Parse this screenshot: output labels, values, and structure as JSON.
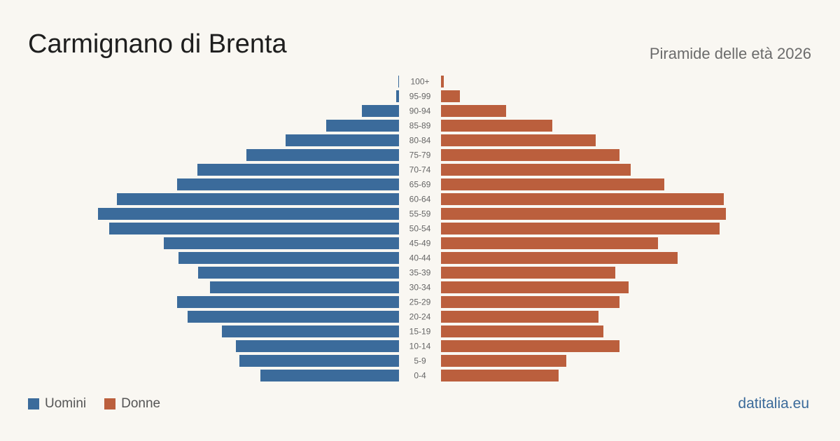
{
  "title": "Carmignano di Brenta",
  "subtitle": "Piramide delle età 2026",
  "brand": "datitalia.eu",
  "colors": {
    "male": "#3b6b9b",
    "female": "#bb5f3d",
    "tick": "#666666"
  },
  "chart_data": {
    "type": "bar",
    "orientation": "horizontal-pyramid",
    "categories": [
      "100+",
      "95-99",
      "90-94",
      "85-89",
      "80-84",
      "75-79",
      "70-74",
      "65-69",
      "60-64",
      "55-59",
      "50-54",
      "45-49",
      "40-44",
      "35-39",
      "30-34",
      "25-29",
      "20-24",
      "15-19",
      "10-14",
      "5-9",
      "0-4"
    ],
    "series": [
      {
        "name": "Uomini",
        "values": [
          1,
          4,
          53,
          104,
          162,
          218,
          288,
          317,
          403,
          430,
          414,
          336,
          315,
          287,
          270,
          317,
          302,
          253,
          233,
          228,
          198
        ]
      },
      {
        "name": "Donne",
        "values": [
          4,
          27,
          93,
          159,
          221,
          255,
          271,
          319,
          404,
          407,
          398,
          310,
          338,
          249,
          268,
          255,
          225,
          232,
          255,
          179,
          168
        ]
      }
    ],
    "legend_position": "bottom-left",
    "grid": false
  },
  "legend": [
    {
      "label": "Uomini",
      "color": "#3b6b9b"
    },
    {
      "label": "Donne",
      "color": "#bb5f3d"
    }
  ]
}
